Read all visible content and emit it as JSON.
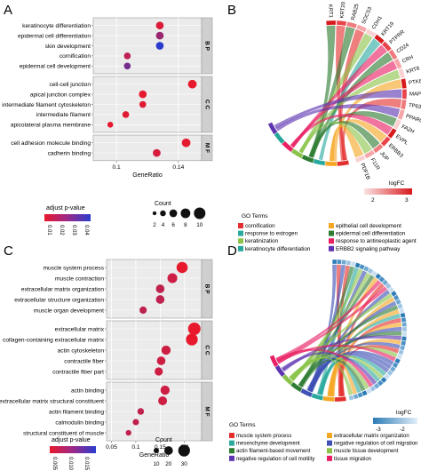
{
  "panels": {
    "A": {
      "letter": "A",
      "xlabel": "GeneRatio",
      "xticks": [
        0.1,
        0.14
      ],
      "xlim": [
        0.085,
        0.155
      ],
      "facets": [
        {
          "name": "B P",
          "terms": [
            {
              "label": "keratinocyte differentiation",
              "x": 0.128,
              "count": 6,
              "padj": 0.005
            },
            {
              "label": "epidermal cell differentiation",
              "x": 0.128,
              "count": 6,
              "padj": 0.02
            },
            {
              "label": "skin development",
              "x": 0.128,
              "count": 6,
              "padj": 0.045
            },
            {
              "label": "cornification",
              "x": 0.107,
              "count": 5,
              "padj": 0.012
            },
            {
              "label": "epidermal cell development",
              "x": 0.107,
              "count": 5,
              "padj": 0.028
            }
          ]
        },
        {
          "name": "C C",
          "terms": [
            {
              "label": "cell-cell junction",
              "x": 0.149,
              "count": 7,
              "padj": 0.002
            },
            {
              "label": "apical junction complex",
              "x": 0.117,
              "count": 6,
              "padj": 0.003
            },
            {
              "label": "intermediate filament cytoskeleton",
              "x": 0.117,
              "count": 5,
              "padj": 0.004
            },
            {
              "label": "intermediate filament",
              "x": 0.106,
              "count": 5,
              "padj": 0.004
            },
            {
              "label": "apicolateral plasma membrane",
              "x": 0.096,
              "count": 4,
              "padj": 0.003
            }
          ]
        },
        {
          "name": "M F",
          "terms": [
            {
              "label": "cell adhesion molecule binding",
              "x": 0.145,
              "count": 7,
              "padj": 0.003
            },
            {
              "label": "cadherin binding",
              "x": 0.126,
              "count": 6,
              "padj": 0.006
            }
          ]
        }
      ],
      "color_legend": {
        "title": "adjust p-value",
        "ticks": [
          "0.01",
          "0.02",
          "0.03",
          "0.04"
        ]
      },
      "size_legend": {
        "title": "Count",
        "values": [
          2,
          4,
          6,
          8,
          10
        ]
      }
    },
    "B": {
      "letter": "B",
      "genes": [
        "KRT1",
        "KRT20",
        "RAB25",
        "SOCS3",
        "CDH1",
        "KRT19",
        "PTPRR",
        "CD24",
        "CRH",
        "KRT8",
        "PTK6",
        "MAPK13",
        "TP63",
        "PPARG",
        "FA2H",
        "EVPL",
        "ERBB3",
        "JUP",
        "F11R",
        "PDF1B"
      ],
      "logfc_title": "logFC",
      "logfc_ticks": [
        "2",
        "3"
      ],
      "go_title": "GO Terms",
      "go_terms": [
        {
          "label": "cornification",
          "color": "#e3302f"
        },
        {
          "label": "epithelial cell development",
          "color": "#f5a623"
        },
        {
          "label": "response to estrogen",
          "color": "#2aa99f"
        },
        {
          "label": "epidermal cell differentiation",
          "color": "#2e7d32"
        },
        {
          "label": "keratinization",
          "color": "#8bc34a"
        },
        {
          "label": "response to antineoplastic agent",
          "color": "#e91e63"
        },
        {
          "label": "keratinocyte differentiation",
          "color": "#26a69a"
        },
        {
          "label": "ERBB2 signaling pathway",
          "color": "#5e35b1"
        }
      ]
    },
    "C": {
      "letter": "C",
      "xlabel": "GeneRatio",
      "xticks": [
        0.05,
        0.1,
        0.15,
        0.2
      ],
      "xlim": [
        0.04,
        0.235
      ],
      "facets": [
        {
          "name": "B P",
          "terms": [
            {
              "label": "muscle system process",
              "x": 0.195,
              "count": 28,
              "padj": 0.001
            },
            {
              "label": "muscle contraction",
              "x": 0.175,
              "count": 24,
              "padj": 0.003
            },
            {
              "label": "extracellular matrix organization",
              "x": 0.15,
              "count": 20,
              "padj": 0.004
            },
            {
              "label": "extracellular structure organization",
              "x": 0.15,
              "count": 20,
              "padj": 0.004
            },
            {
              "label": "muscle organ development",
              "x": 0.115,
              "count": 16,
              "padj": 0.004
            }
          ]
        },
        {
          "name": "C C",
          "terms": [
            {
              "label": "extracellular matrix",
              "x": 0.22,
              "count": 32,
              "padj": 0.001
            },
            {
              "label": "collagen-containing extracellular matrix",
              "x": 0.215,
              "count": 30,
              "padj": 0.001
            },
            {
              "label": "actin cytoskeleton",
              "x": 0.162,
              "count": 22,
              "padj": 0.003
            },
            {
              "label": "contractile fiber",
              "x": 0.152,
              "count": 20,
              "padj": 0.003
            },
            {
              "label": "contractile fiber part",
              "x": 0.147,
              "count": 19,
              "padj": 0.003
            }
          ]
        },
        {
          "name": "M F",
          "terms": [
            {
              "label": "actin binding",
              "x": 0.16,
              "count": 22,
              "padj": 0.003
            },
            {
              "label": "extracellular matrix structural constituent",
              "x": 0.155,
              "count": 21,
              "padj": 0.003
            },
            {
              "label": "actin filament binding",
              "x": 0.11,
              "count": 14,
              "padj": 0.004
            },
            {
              "label": "calmodulin binding",
              "x": 0.1,
              "count": 13,
              "padj": 0.004
            },
            {
              "label": "structural constituent of muscle",
              "x": 0.085,
              "count": 11,
              "padj": 0.004
            }
          ]
        }
      ],
      "color_legend": {
        "title": "adjust p-value",
        "ticks": [
          "0.005",
          "0.010",
          "0.015"
        ]
      },
      "size_legend": {
        "title": "Count",
        "values": [
          10,
          20,
          30
        ]
      }
    },
    "D": {
      "letter": "D",
      "logfc_title": "logFC",
      "logfc_ticks": [
        "-3",
        "-2"
      ],
      "go_title": "GO Terms",
      "go_terms": [
        {
          "label": "muscle system process",
          "color": "#e3302f"
        },
        {
          "label": "extracellular matrix organization",
          "color": "#f5a623"
        },
        {
          "label": "mesenchyme development",
          "color": "#2aa99f"
        },
        {
          "label": "negative regulation of cell migration",
          "color": "#3f51b5"
        },
        {
          "label": "actin filament-based movement",
          "color": "#2e7d32"
        },
        {
          "label": "muscle tissue development",
          "color": "#8bc34a"
        },
        {
          "label": "negative regulation of cell motility",
          "color": "#5e35b1"
        },
        {
          "label": "tissue migration",
          "color": "#e91e63"
        }
      ]
    }
  },
  "chart_data": [
    {
      "type": "scatter",
      "title": "",
      "xlabel": "GeneRatio",
      "series": [
        {
          "name": "B P",
          "categories": [
            "keratinocyte differentiation",
            "epidermal cell differentiation",
            "skin development",
            "cornification",
            "epidermal cell development"
          ],
          "values": [
            0.128,
            0.128,
            0.128,
            0.107,
            0.107
          ]
        },
        {
          "name": "C C",
          "categories": [
            "cell-cell junction",
            "apical junction complex",
            "intermediate filament cytoskeleton",
            "intermediate filament",
            "apicolateral plasma membrane"
          ],
          "values": [
            0.149,
            0.117,
            0.117,
            0.106,
            0.096
          ]
        },
        {
          "name": "M F",
          "categories": [
            "cell adhesion molecule binding",
            "cadherin binding"
          ],
          "values": [
            0.145,
            0.126
          ]
        }
      ]
    },
    {
      "type": "scatter",
      "title": "",
      "xlabel": "GeneRatio",
      "series": [
        {
          "name": "B P",
          "categories": [
            "muscle system process",
            "muscle contraction",
            "extracellular matrix organization",
            "extracellular structure organization",
            "muscle organ development"
          ],
          "values": [
            0.195,
            0.175,
            0.15,
            0.15,
            0.115
          ]
        },
        {
          "name": "C C",
          "categories": [
            "extracellular matrix",
            "collagen-containing extracellular matrix",
            "actin cytoskeleton",
            "contractile fiber",
            "contractile fiber part"
          ],
          "values": [
            0.22,
            0.215,
            0.162,
            0.152,
            0.147
          ]
        },
        {
          "name": "M F",
          "categories": [
            "actin binding",
            "extracellular matrix structural constituent",
            "actin filament binding",
            "calmodulin binding",
            "structural constituent of muscle"
          ],
          "values": [
            0.16,
            0.155,
            0.11,
            0.1,
            0.085
          ]
        }
      ]
    }
  ]
}
